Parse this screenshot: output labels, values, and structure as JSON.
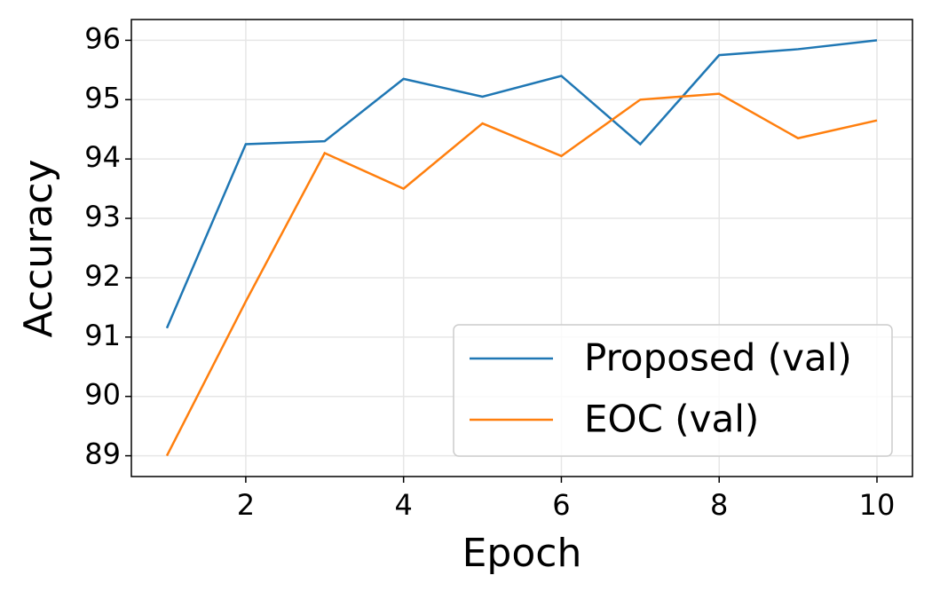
{
  "chart_data": {
    "type": "line",
    "x": [
      1,
      2,
      3,
      4,
      5,
      6,
      7,
      8,
      9,
      10
    ],
    "series": [
      {
        "name": "Proposed (val)",
        "color": "#1f77b4",
        "values": [
          91.15,
          94.25,
          94.3,
          95.35,
          95.05,
          95.4,
          94.25,
          95.75,
          95.85,
          96.0
        ]
      },
      {
        "name": "EOC (val)",
        "color": "#ff7f0e",
        "values": [
          89.0,
          91.6,
          94.1,
          93.5,
          94.6,
          94.05,
          95.0,
          95.1,
          94.35,
          94.65
        ]
      }
    ],
    "x_label": "Epoch",
    "y_label": "Accuracy",
    "xlim": [
      0.55,
      10.45
    ],
    "xticks": [
      2,
      4,
      6,
      8,
      10
    ],
    "ylim": [
      88.65,
      96.35
    ],
    "yticks": [
      89,
      90,
      91,
      92,
      93,
      94,
      95,
      96
    ],
    "grid": true,
    "legend": "lower right"
  }
}
